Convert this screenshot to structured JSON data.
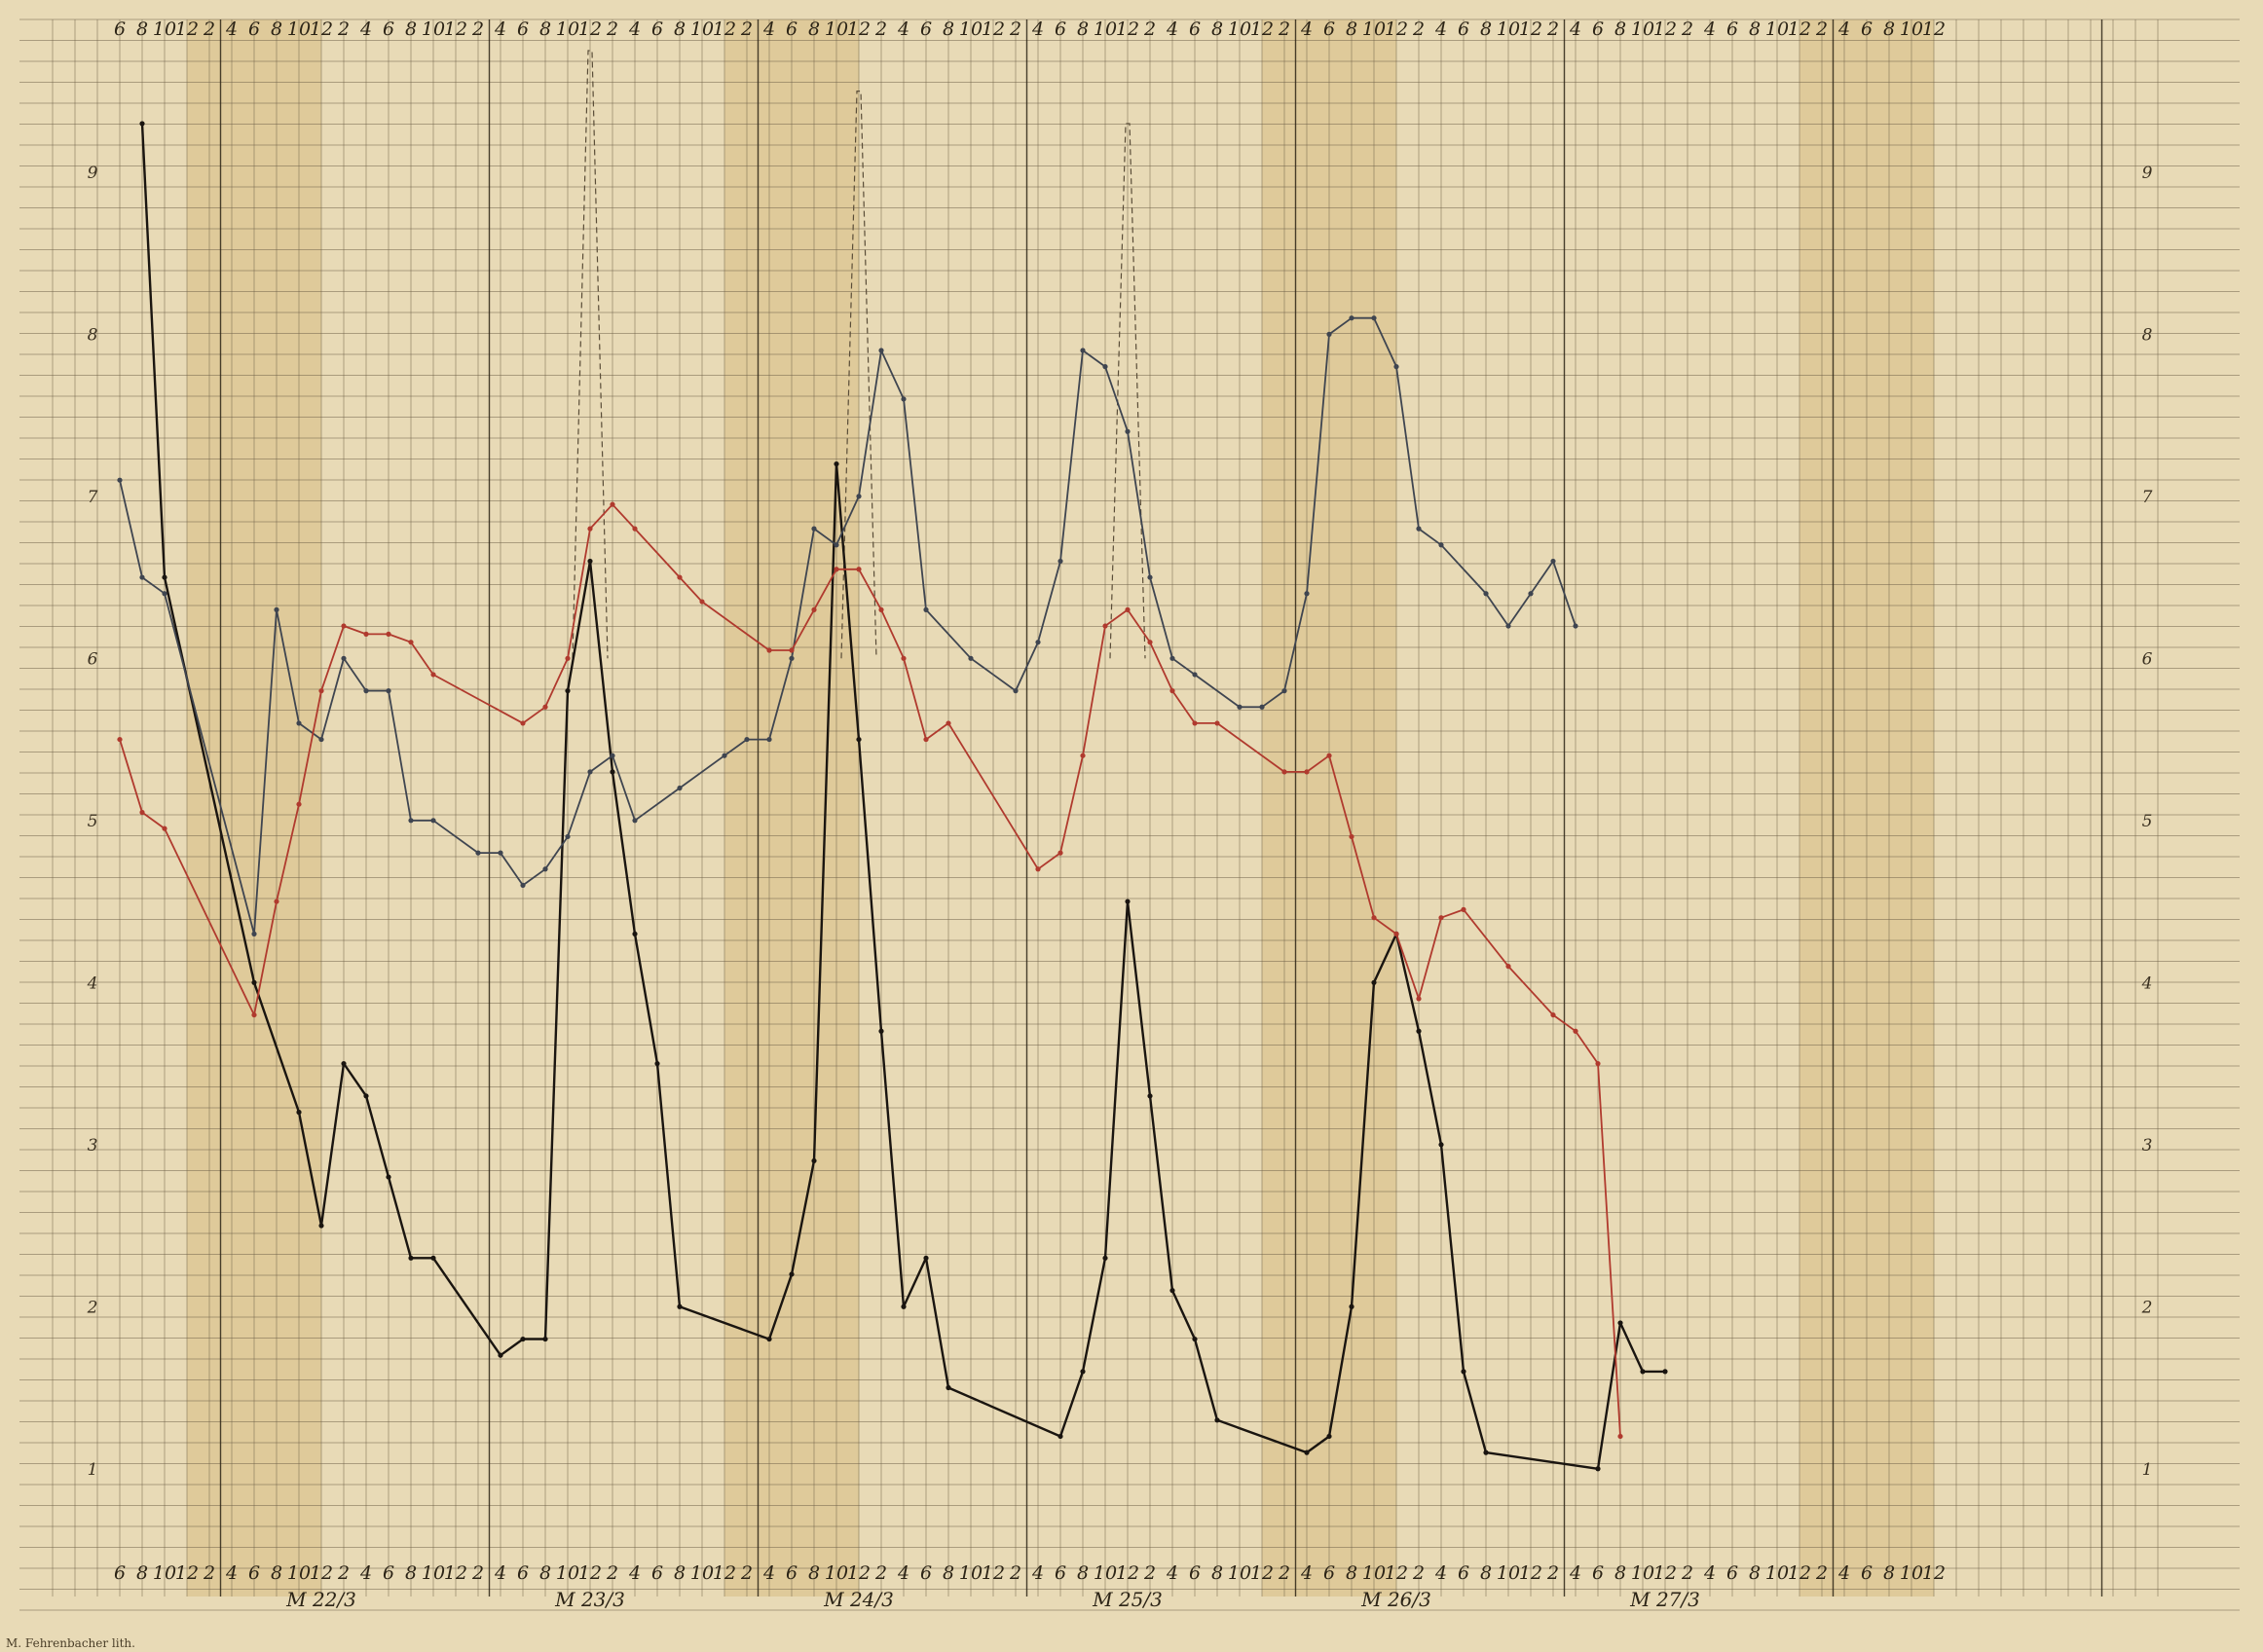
{
  "chart_data": {
    "type": "line",
    "x_unit_hours": 2,
    "x_count": 86,
    "top_tick_labels": [
      "6",
      "8",
      "10",
      "12",
      "2",
      "4",
      "6",
      "8",
      "10",
      "12",
      "2",
      "4",
      "6",
      "8",
      "10",
      "12",
      "2",
      "4",
      "6",
      "8",
      "10",
      "12",
      "2",
      "4",
      "6",
      "8",
      "10",
      "12",
      "2",
      "4",
      "6",
      "8",
      "10",
      "12",
      "2",
      "4",
      "6",
      "8",
      "10",
      "12",
      "2",
      "4",
      "6",
      "8",
      "10",
      "12",
      "2",
      "4",
      "6",
      "8",
      "10",
      "12",
      "2",
      "4",
      "6",
      "8",
      "10",
      "12",
      "2",
      "4",
      "6",
      "8",
      "10",
      "12",
      "2",
      "4",
      "6",
      "8",
      "10",
      "12",
      "2",
      "4",
      "6",
      "8",
      "10",
      "12",
      "2",
      "4",
      "6",
      "8",
      "10",
      "12"
    ],
    "bottom_tick_labels": [
      "6",
      "8",
      "10",
      "12",
      "2",
      "4",
      "6",
      "8",
      "10",
      "12",
      "2",
      "4",
      "6",
      "8",
      "10",
      "12",
      "2",
      "4",
      "6",
      "8",
      "10",
      "12",
      "2",
      "4",
      "6",
      "8",
      "10",
      "12",
      "2",
      "4",
      "6",
      "8",
      "10",
      "12",
      "2",
      "4",
      "6",
      "8",
      "10",
      "12",
      "2",
      "4",
      "6",
      "8",
      "10",
      "12",
      "2",
      "4",
      "6",
      "8",
      "10",
      "12",
      "2",
      "4",
      "6",
      "8",
      "10",
      "12",
      "2",
      "4",
      "6",
      "8",
      "10",
      "12",
      "2",
      "4",
      "6",
      "8",
      "10",
      "12",
      "2",
      "4",
      "6",
      "8",
      "10",
      "12",
      "2",
      "4",
      "6",
      "8",
      "10",
      "12"
    ],
    "day_labels": [
      {
        "text": "M 22/3",
        "x_index": 9
      },
      {
        "text": "M 23/3",
        "x_index": 21
      },
      {
        "text": "M 24/3",
        "x_index": 33
      },
      {
        "text": "M 25/3",
        "x_index": 45
      },
      {
        "text": "M 26/3",
        "x_index": 57
      },
      {
        "text": "M 27/3",
        "x_index": 69
      }
    ],
    "y_ticks_left": [
      "9",
      "8",
      "7",
      "6",
      "5",
      "4",
      "3",
      "2",
      "1"
    ],
    "y_ticks_right": [
      "9",
      "8",
      "7",
      "6",
      "5",
      "4",
      "3",
      "2",
      "1"
    ],
    "y_range": [
      0.5,
      9.75
    ],
    "series": [
      {
        "color": "#1a1510",
        "points": [
          [
            1,
            9.3
          ],
          [
            2,
            6.5
          ],
          [
            6,
            4.0
          ],
          [
            8,
            3.2
          ],
          [
            9,
            2.5
          ],
          [
            10,
            3.5
          ],
          [
            11,
            3.3
          ],
          [
            12,
            2.8
          ],
          [
            13,
            2.3
          ],
          [
            14,
            2.3
          ],
          [
            17,
            1.7
          ],
          [
            18,
            1.8
          ],
          [
            19,
            1.8
          ],
          [
            20,
            5.8
          ],
          [
            21,
            6.6
          ],
          [
            22,
            5.3
          ],
          [
            23,
            4.3
          ],
          [
            24,
            3.5
          ],
          [
            25,
            2.0
          ],
          [
            29,
            1.8
          ],
          [
            30,
            2.2
          ],
          [
            31,
            2.9
          ],
          [
            32,
            7.2
          ],
          [
            33,
            5.5
          ],
          [
            34,
            3.7
          ],
          [
            35,
            2.0
          ],
          [
            36,
            2.3
          ],
          [
            37,
            1.5
          ],
          [
            42,
            1.2
          ],
          [
            43,
            1.6
          ],
          [
            44,
            2.3
          ],
          [
            45,
            4.5
          ],
          [
            46,
            3.3
          ],
          [
            47,
            2.1
          ],
          [
            48,
            1.8
          ],
          [
            49,
            1.3
          ],
          [
            53,
            1.1
          ],
          [
            54,
            1.2
          ],
          [
            55,
            2.0
          ],
          [
            56,
            4.0
          ],
          [
            57,
            4.3
          ],
          [
            58,
            3.7
          ],
          [
            59,
            3.0
          ],
          [
            60,
            1.6
          ],
          [
            61,
            1.1
          ],
          [
            66,
            1.0
          ],
          [
            67,
            1.9
          ],
          [
            68,
            1.6
          ],
          [
            69,
            1.6
          ]
        ]
      },
      {
        "color": "#3f4550",
        "points": [
          [
            0,
            7.1
          ],
          [
            1,
            6.5
          ],
          [
            2,
            6.4
          ],
          [
            6,
            4.3
          ],
          [
            7,
            6.3
          ],
          [
            8,
            5.6
          ],
          [
            9,
            5.5
          ],
          [
            10,
            6.0
          ],
          [
            11,
            5.8
          ],
          [
            12,
            5.8
          ],
          [
            13,
            5.0
          ],
          [
            14,
            5.0
          ],
          [
            16,
            4.8
          ],
          [
            17,
            4.8
          ],
          [
            18,
            4.6
          ],
          [
            19,
            4.7
          ],
          [
            20,
            4.9
          ],
          [
            21,
            5.3
          ],
          [
            22,
            5.4
          ],
          [
            23,
            5.0
          ],
          [
            25,
            5.2
          ],
          [
            27,
            5.4
          ],
          [
            28,
            5.5
          ],
          [
            29,
            5.5
          ],
          [
            30,
            6.0
          ],
          [
            31,
            6.8
          ],
          [
            32,
            6.7
          ],
          [
            33,
            7.0
          ],
          [
            34,
            7.9
          ],
          [
            35,
            7.6
          ],
          [
            36,
            6.3
          ],
          [
            38,
            6.0
          ],
          [
            40,
            5.8
          ],
          [
            41,
            6.1
          ],
          [
            42,
            6.6
          ],
          [
            43,
            7.9
          ],
          [
            44,
            7.8
          ],
          [
            45,
            7.4
          ],
          [
            46,
            6.5
          ],
          [
            47,
            6.0
          ],
          [
            48,
            5.9
          ],
          [
            50,
            5.7
          ],
          [
            51,
            5.7
          ],
          [
            52,
            5.8
          ],
          [
            53,
            6.4
          ],
          [
            54,
            8.0
          ],
          [
            55,
            8.1
          ],
          [
            56,
            8.1
          ],
          [
            57,
            7.8
          ],
          [
            58,
            6.8
          ],
          [
            59,
            6.7
          ],
          [
            61,
            6.4
          ],
          [
            62,
            6.2
          ],
          [
            63,
            6.4
          ],
          [
            64,
            6.6
          ],
          [
            65,
            6.2
          ]
        ]
      },
      {
        "color": "#b03a2e",
        "points": [
          [
            0,
            5.5
          ],
          [
            1,
            5.05
          ],
          [
            2,
            4.95
          ],
          [
            6,
            3.8
          ],
          [
            7,
            4.5
          ],
          [
            8,
            5.1
          ],
          [
            9,
            5.8
          ],
          [
            10,
            6.2
          ],
          [
            11,
            6.15
          ],
          [
            12,
            6.15
          ],
          [
            13,
            6.1
          ],
          [
            14,
            5.9
          ],
          [
            18,
            5.6
          ],
          [
            19,
            5.7
          ],
          [
            20,
            6.0
          ],
          [
            21,
            6.8
          ],
          [
            22,
            6.95
          ],
          [
            23,
            6.8
          ],
          [
            25,
            6.5
          ],
          [
            26,
            6.35
          ],
          [
            29,
            6.05
          ],
          [
            30,
            6.05
          ],
          [
            31,
            6.3
          ],
          [
            32,
            6.55
          ],
          [
            33,
            6.55
          ],
          [
            34,
            6.3
          ],
          [
            35,
            6.0
          ],
          [
            36,
            5.5
          ],
          [
            37,
            5.6
          ],
          [
            41,
            4.7
          ],
          [
            42,
            4.8
          ],
          [
            43,
            5.4
          ],
          [
            44,
            6.2
          ],
          [
            45,
            6.3
          ],
          [
            46,
            6.1
          ],
          [
            47,
            5.8
          ],
          [
            48,
            5.6
          ],
          [
            49,
            5.6
          ],
          [
            52,
            5.3
          ],
          [
            53,
            5.3
          ],
          [
            54,
            5.4
          ],
          [
            55,
            4.9
          ],
          [
            56,
            4.4
          ],
          [
            57,
            4.3
          ],
          [
            58,
            3.9
          ],
          [
            59,
            4.4
          ],
          [
            60,
            4.45
          ],
          [
            62,
            4.1
          ],
          [
            64,
            3.8
          ],
          [
            65,
            3.7
          ],
          [
            66,
            3.5
          ],
          [
            67,
            1.2
          ]
        ]
      }
    ],
    "dashed_spikes": [
      {
        "x_index": 21,
        "y_peak": 9.75
      },
      {
        "x_index": 33,
        "y_peak": 9.5
      },
      {
        "x_index": 45,
        "y_peak": 9.3
      }
    ]
  },
  "credit": "M. Fehrenbacher lith."
}
